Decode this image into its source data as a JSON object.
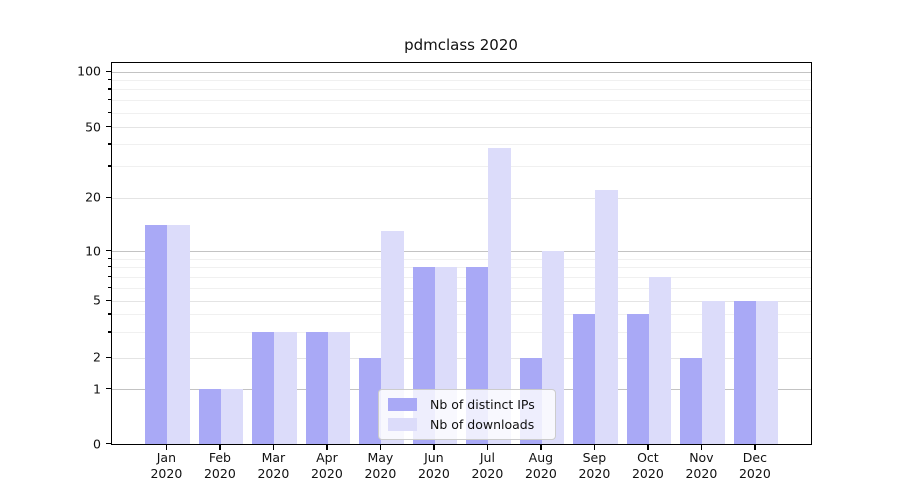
{
  "chart_data": {
    "type": "bar",
    "title": "pdmclass 2020",
    "categories": [
      "Jan 2020",
      "Feb 2020",
      "Mar 2020",
      "Apr 2020",
      "May 2020",
      "Jun 2020",
      "Jul 2020",
      "Aug 2020",
      "Sep 2020",
      "Oct 2020",
      "Nov 2020",
      "Dec 2020"
    ],
    "series": [
      {
        "name": "Nb of distinct IPs",
        "color": "#a9a9f6",
        "values": [
          14,
          1,
          3,
          3,
          2,
          8,
          8,
          2,
          4,
          4,
          2,
          5
        ]
      },
      {
        "name": "Nb of downloads",
        "color": "#dcdcfa",
        "values": [
          14,
          1,
          3,
          3,
          13,
          8,
          38,
          10,
          22,
          7,
          5,
          5
        ]
      }
    ],
    "xlabel": "",
    "ylabel": "",
    "yscale": "symlog",
    "y_ticks": [
      0,
      1,
      2,
      5,
      10,
      20,
      50,
      100
    ],
    "y_minor_gridlines": [
      3,
      4,
      6,
      7,
      8,
      9,
      30,
      40,
      60,
      70,
      80,
      90
    ],
    "ylim": [
      0,
      115
    ],
    "grid": true,
    "legend_position": "lower center"
  }
}
